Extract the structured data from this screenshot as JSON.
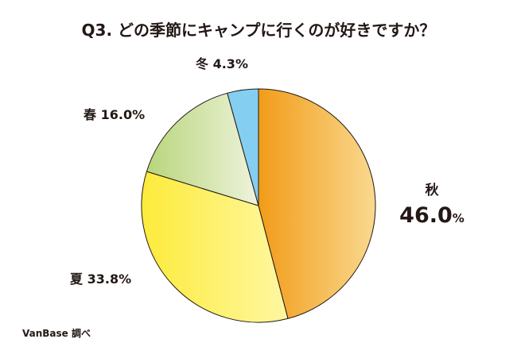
{
  "chart_data": {
    "type": "pie",
    "title": "Q3. どの季節にキャンプに行くのが好きですか？",
    "categories": [
      "秋",
      "夏",
      "春",
      "冬"
    ],
    "values": [
      46.0,
      33.8,
      16.0,
      4.3
    ],
    "value_labels": [
      "46.0",
      "33.8%",
      "16.0%",
      "4.3%"
    ],
    "percent_sign": "%",
    "colors": [
      "#F29C18",
      "#FDEB3C",
      "#B8D67C",
      "#84CFF1"
    ],
    "direction": "clockwise from 12 o'clock",
    "source": "VanBase 調べ"
  }
}
